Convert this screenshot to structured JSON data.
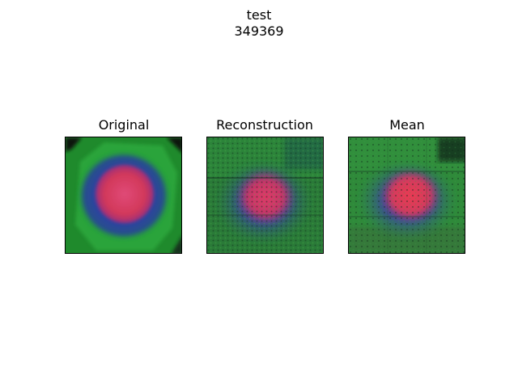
{
  "figure": {
    "title_line1": "test",
    "title_line2": "349369"
  },
  "panels": [
    {
      "title": "Original"
    },
    {
      "title": "Reconstruction"
    },
    {
      "title": "Mean"
    }
  ],
  "colors": {
    "green": "#1f9b2e",
    "blue": "#2e3fa8",
    "red": "#d2385a",
    "dark": "#0d1a14"
  }
}
